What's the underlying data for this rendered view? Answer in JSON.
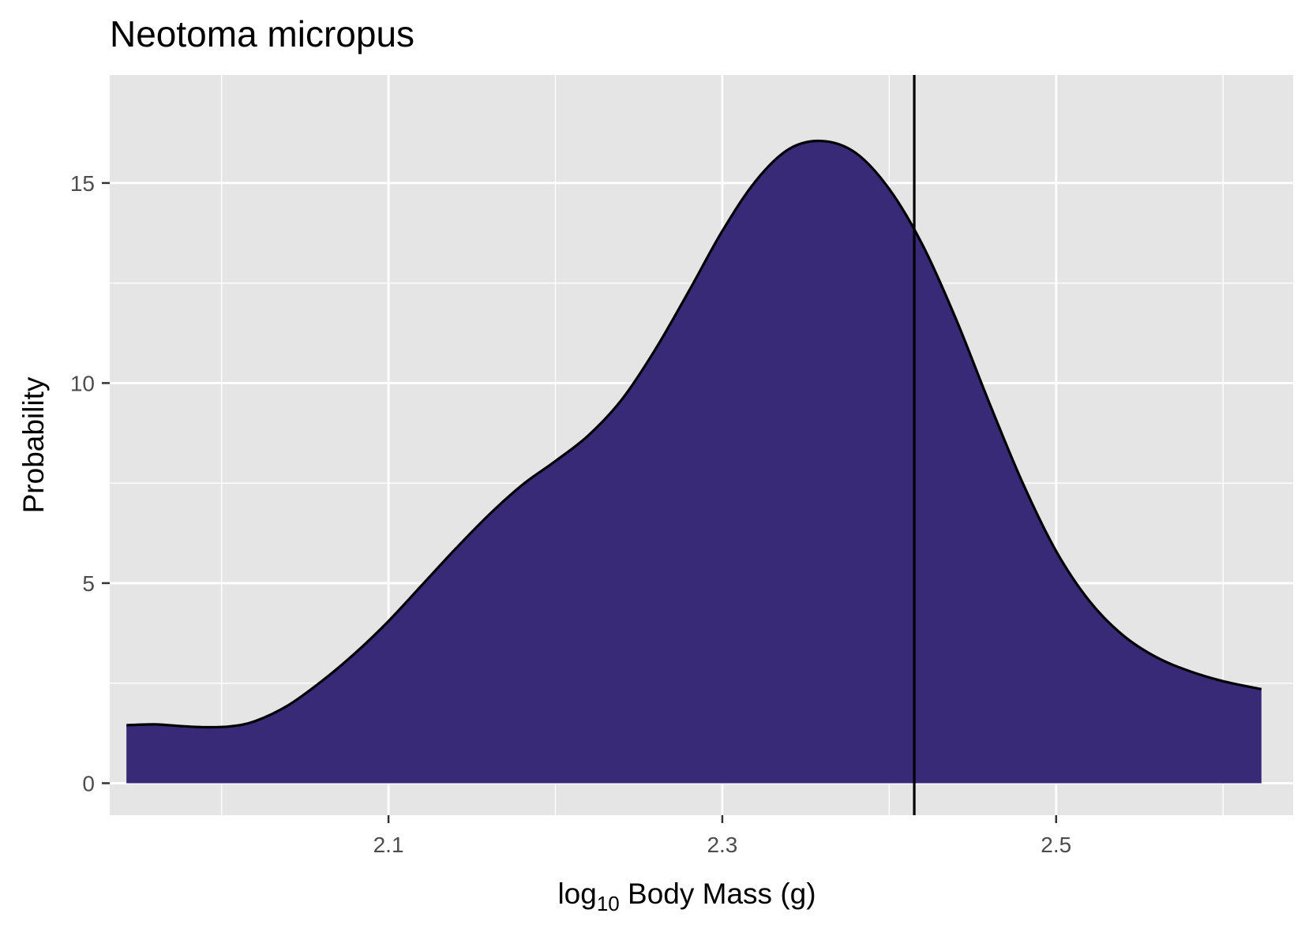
{
  "chart_data": {
    "type": "area",
    "title": "Neotoma micropus",
    "xlabel": {
      "prefix": "log",
      "sub": "10",
      "suffix": " Body Mass (g)"
    },
    "ylabel": "Probability",
    "xlim": [
      1.933,
      2.642
    ],
    "ylim": [
      -0.8,
      17.7
    ],
    "x_ticks_major": [
      "2.1",
      "2.3",
      "2.5"
    ],
    "x_ticks_minor": [
      2.0,
      2.2,
      2.4,
      2.6
    ],
    "y_ticks_major": [
      "0",
      "5",
      "10",
      "15"
    ],
    "y_ticks_minor": [
      2.5,
      7.5,
      12.5
    ],
    "grid": true,
    "fill_color": "#382a77",
    "outline_color": "#000000",
    "panel_background": "#e5e5e5",
    "vline_x": 2.415,
    "density": {
      "x": [
        1.943,
        1.96,
        1.975,
        1.99,
        2.005,
        2.02,
        2.04,
        2.06,
        2.08,
        2.1,
        2.12,
        2.14,
        2.16,
        2.18,
        2.2,
        2.22,
        2.24,
        2.26,
        2.28,
        2.3,
        2.32,
        2.34,
        2.36,
        2.38,
        2.4,
        2.42,
        2.44,
        2.46,
        2.48,
        2.5,
        2.52,
        2.54,
        2.56,
        2.58,
        2.6,
        2.623
      ],
      "y": [
        1.45,
        1.47,
        1.43,
        1.4,
        1.42,
        1.55,
        1.95,
        2.55,
        3.25,
        4.05,
        4.95,
        5.85,
        6.7,
        7.45,
        8.05,
        8.7,
        9.6,
        10.85,
        12.3,
        13.8,
        15.05,
        15.85,
        16.05,
        15.75,
        14.85,
        13.45,
        11.6,
        9.5,
        7.5,
        5.8,
        4.55,
        3.7,
        3.15,
        2.8,
        2.55,
        2.35
      ]
    }
  }
}
